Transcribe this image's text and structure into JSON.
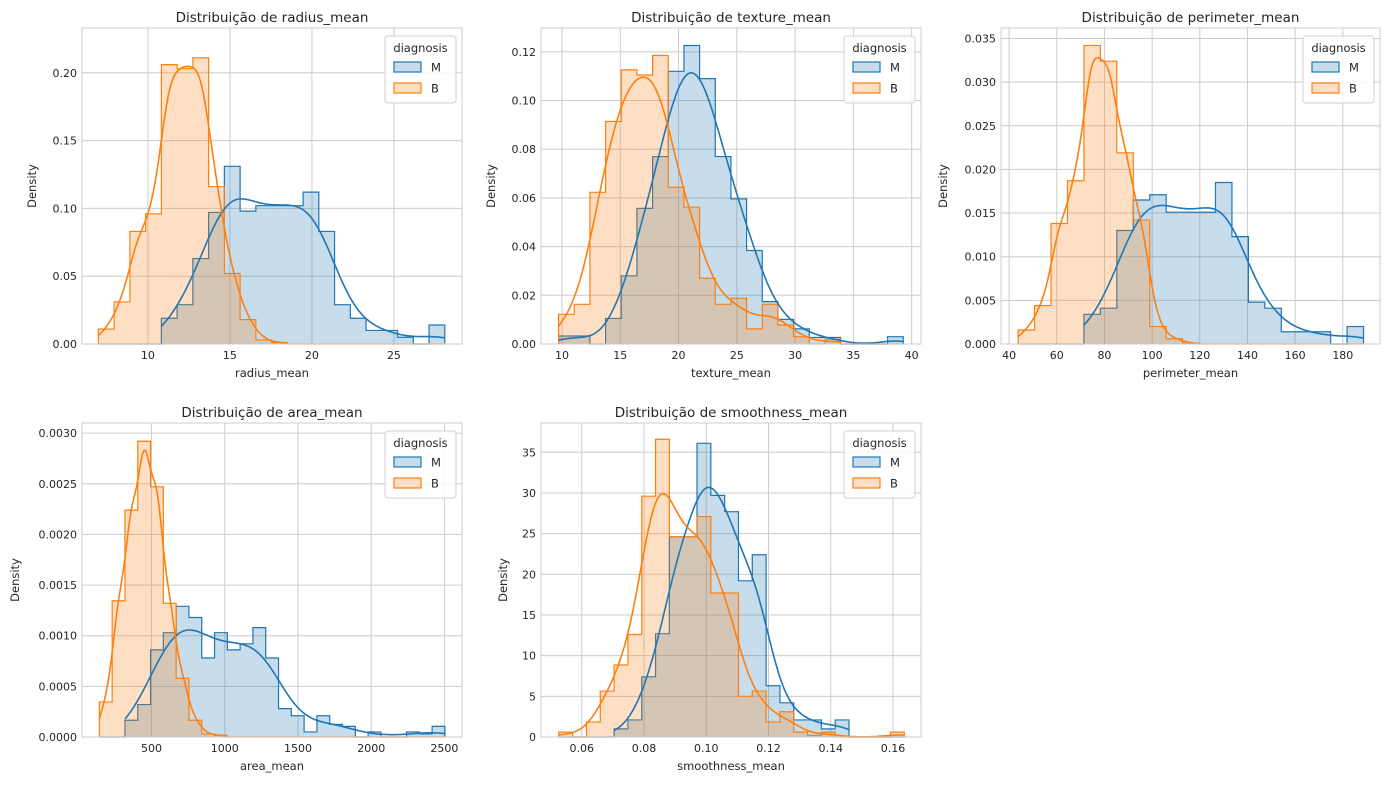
{
  "colors": {
    "M": "#1f77b4",
    "B": "#ff7f0e",
    "grid": "#cccccc",
    "background": "#ffffff"
  },
  "chart_data": [
    {
      "type": "histogram-kde",
      "title": "Distribuição de radius_mean",
      "xlabel": "radius_mean",
      "ylabel": "Density",
      "xlim": [
        5.98,
        29.15
      ],
      "ylim": [
        0,
        0.233
      ],
      "xticks": [
        "10",
        "15",
        "20",
        "25"
      ],
      "xtick_values": [
        10,
        15,
        20,
        25
      ],
      "yticks": [
        "0.00",
        "0.05",
        "0.10",
        "0.15",
        "0.20"
      ],
      "ytick_values": [
        0,
        0.05,
        0.1,
        0.15,
        0.2
      ],
      "grid": true,
      "legend": {
        "title": "diagnosis",
        "placement": "top-right"
      },
      "bin_start": 6.98,
      "bin_width": 0.96,
      "series": [
        {
          "name": "M",
          "values": [
            0,
            0,
            0,
            0,
            0.019,
            0.029,
            0.063,
            0.097,
            0.131,
            0.098,
            0.102,
            0.102,
            0.102,
            0.112,
            0.083,
            0.029,
            0.019,
            0.01,
            0.01,
            0.005,
            0,
            0.014
          ]
        },
        {
          "name": "B",
          "values": [
            0.011,
            0.031,
            0.083,
            0.096,
            0.206,
            0.203,
            0.211,
            0.116,
            0.052,
            0.018,
            0.003,
            0.001,
            0,
            0,
            0,
            0,
            0,
            0,
            0,
            0,
            0,
            0
          ]
        }
      ]
    },
    {
      "type": "histogram-kde",
      "title": "Distribuição de texture_mean",
      "xlabel": "texture_mean",
      "ylabel": "Density",
      "xlim": [
        8.2,
        40.8
      ],
      "ylim": [
        0,
        0.1298
      ],
      "xticks": [
        "10",
        "15",
        "20",
        "25",
        "30",
        "35",
        "40"
      ],
      "xtick_values": [
        10,
        15,
        20,
        25,
        30,
        35,
        40
      ],
      "yticks": [
        "0.00",
        "0.02",
        "0.04",
        "0.06",
        "0.08",
        "0.10",
        "0.12"
      ],
      "ytick_values": [
        0,
        0.02,
        0.04,
        0.06,
        0.08,
        0.1,
        0.12
      ],
      "grid": true,
      "legend": {
        "title": "diagnosis",
        "placement": "top-right"
      },
      "bin_start": 9.71,
      "bin_width": 1.344,
      "series": [
        {
          "name": "M",
          "values": [
            0.0033,
            0.0033,
            0,
            0.0105,
            0.028,
            0.0557,
            0.077,
            0.112,
            0.1226,
            0.109,
            0.077,
            0.0596,
            0.0384,
            0.0174,
            0.0101,
            0.0062,
            0.0027,
            0.0027,
            0,
            0,
            0,
            0.003
          ]
        },
        {
          "name": "B",
          "values": [
            0.0122,
            0.0163,
            0.0623,
            0.0914,
            0.1126,
            0.1105,
            0.1185,
            0.0644,
            0.0562,
            0.027,
            0.0163,
            0.0188,
            0.0062,
            0.0163,
            0.0078,
            0.003,
            0,
            0.002,
            0,
            0,
            0,
            0
          ]
        }
      ]
    },
    {
      "type": "histogram-kde",
      "title": "Distribuição de perimeter_mean",
      "xlabel": "perimeter_mean",
      "ylabel": "Density",
      "xlim": [
        36.6,
        195.6
      ],
      "ylim": [
        0,
        0.0362
      ],
      "xticks": [
        "40",
        "60",
        "80",
        "100",
        "120",
        "140",
        "160",
        "180"
      ],
      "xtick_values": [
        40,
        60,
        80,
        100,
        120,
        140,
        160,
        180
      ],
      "yticks": [
        "0.000",
        "0.005",
        "0.010",
        "0.015",
        "0.020",
        "0.025",
        "0.030",
        "0.035"
      ],
      "ytick_values": [
        0,
        0.005,
        0.01,
        0.015,
        0.02,
        0.025,
        0.03,
        0.035
      ],
      "grid": true,
      "legend": {
        "title": "diagnosis",
        "placement": "top-right"
      },
      "bin_start": 43.79,
      "bin_width": 6.9,
      "series": [
        {
          "name": "M",
          "values": [
            0,
            0,
            0,
            0,
            0.0034,
            0.0041,
            0.013,
            0.0165,
            0.0171,
            0.0151,
            0.0151,
            0.0151,
            0.0185,
            0.0123,
            0.0048,
            0.0041,
            0.0014,
            0.0014,
            0.0014,
            0,
            0.002
          ]
        },
        {
          "name": "B",
          "values": [
            0.0016,
            0.0044,
            0.0138,
            0.0187,
            0.0342,
            0.0324,
            0.0219,
            0.0142,
            0.002,
            0.0006,
            0.0001,
            0,
            0,
            0,
            0,
            0,
            0,
            0,
            0,
            0,
            0
          ]
        }
      ]
    },
    {
      "type": "histogram-kde",
      "title": "Distribuição de area_mean",
      "xlabel": "area_mean",
      "ylabel": "Density",
      "xlim": [
        25,
        2620
      ],
      "ylim": [
        0,
        0.0031
      ],
      "xticks": [
        "500",
        "1000",
        "1500",
        "2000",
        "2500"
      ],
      "xtick_values": [
        500,
        1000,
        1500,
        2000,
        2500
      ],
      "yticks": [
        "0.0000",
        "0.0005",
        "0.0010",
        "0.0015",
        "0.0020",
        "0.0025",
        "0.0030"
      ],
      "ytick_values": [
        0,
        0.0005,
        0.001,
        0.0015,
        0.002,
        0.0025,
        0.003
      ],
      "grid": true,
      "legend": {
        "title": "diagnosis",
        "placement": "top-right"
      },
      "bin_start": 143.5,
      "bin_width": 87.4,
      "series": [
        {
          "name": "M",
          "values": [
            0,
            0,
            0.000165,
            0.00032,
            0.00086,
            0.00103,
            0.00129,
            0.00118,
            0.00078,
            0.00103,
            0.00086,
            0.00092,
            0.00108,
            0.00078,
            0.00028,
            0.00021,
            5e-05,
            0.00021,
            0.000125,
            0.000105,
            0,
            5e-05,
            0,
            0,
            5e-05,
            3e-05,
            0.000105
          ]
        },
        {
          "name": "B",
          "values": [
            0.000345,
            0.001345,
            0.00224,
            0.00292,
            0.00247,
            0.00132,
            0.00058,
            0.000165,
            3e-05,
            1.6e-05,
            0,
            0,
            0,
            0,
            0,
            0,
            0,
            0,
            0,
            0,
            0,
            0,
            0,
            0,
            0,
            0,
            0
          ]
        }
      ]
    },
    {
      "type": "histogram-kde",
      "title": "Distribuição de smoothness_mean",
      "xlabel": "smoothness_mean",
      "ylabel": "Density",
      "xlim": [
        0.0469,
        0.169
      ],
      "ylim": [
        0,
        38.6
      ],
      "xticks": [
        "0.06",
        "0.08",
        "0.10",
        "0.12",
        "0.14",
        "0.16"
      ],
      "xtick_values": [
        0.06,
        0.08,
        0.1,
        0.12,
        0.14,
        0.16
      ],
      "yticks": [
        "0",
        "5",
        "10",
        "15",
        "20",
        "25",
        "30",
        "35"
      ],
      "ytick_values": [
        0,
        5,
        10,
        15,
        20,
        25,
        30,
        35
      ],
      "grid": true,
      "legend": {
        "title": "diagnosis",
        "placement": "top-right"
      },
      "bin_start": 0.05263,
      "bin_width": 0.00444,
      "series": [
        {
          "name": "M",
          "values": [
            0,
            0,
            0,
            0,
            1.0,
            2.1,
            7.4,
            12.7,
            24.6,
            24.6,
            36.1,
            29.7,
            27.7,
            19.2,
            22.4,
            6.3,
            4.2,
            2.1,
            2.1,
            1.0,
            2.1,
            0,
            0,
            0,
            0
          ]
        },
        {
          "name": "B",
          "values": [
            0.6,
            0,
            1.85,
            5.65,
            8.85,
            12.6,
            29.6,
            36.6,
            24.6,
            24.6,
            27.1,
            17.7,
            17.7,
            5.0,
            5.65,
            1.85,
            3.1,
            0.6,
            0.2,
            0.6,
            0,
            0,
            0,
            0,
            0.6
          ]
        }
      ]
    }
  ]
}
